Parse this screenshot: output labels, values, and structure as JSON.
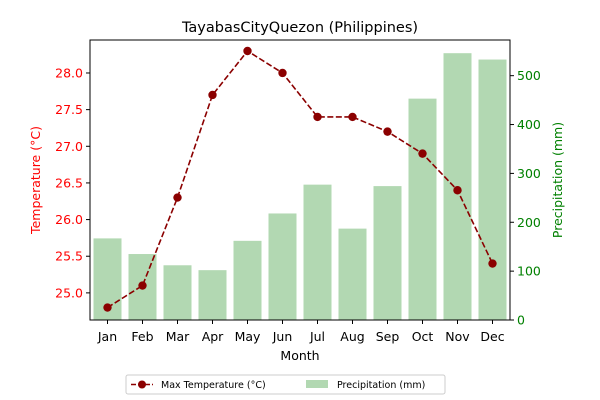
{
  "chart_data": {
    "type": "bar+line",
    "title": "TayabasCityQuezon (Philippines)",
    "xlabel": "Month",
    "ylabel_left": "Temperature (°C)",
    "ylabel_right": "Precipitation (mm)",
    "categories": [
      "Jan",
      "Feb",
      "Mar",
      "Apr",
      "May",
      "Jun",
      "Jul",
      "Aug",
      "Sep",
      "Oct",
      "Nov",
      "Dec"
    ],
    "temperature": {
      "name": "Max Temperature (°C)",
      "values": [
        24.8,
        25.1,
        26.3,
        27.7,
        28.3,
        28.0,
        27.4,
        27.4,
        27.2,
        26.9,
        26.4,
        25.4
      ],
      "color": "#8b0000",
      "ylim": [
        24.63,
        28.45
      ],
      "ticks": [
        25.0,
        25.5,
        26.0,
        26.5,
        27.0,
        27.5,
        28.0
      ]
    },
    "precipitation": {
      "name": "Precipitation (mm)",
      "values": [
        167,
        135,
        112,
        102,
        162,
        218,
        277,
        187,
        274,
        453,
        546,
        533
      ],
      "color": "#b2d8b2",
      "ylim": [
        0,
        573
      ],
      "ticks": [
        0,
        100,
        200,
        300,
        400,
        500
      ]
    },
    "left_axis_color": "#ff0000",
    "right_axis_color": "#008000",
    "legend_position": "bottom-center",
    "grid": false
  }
}
